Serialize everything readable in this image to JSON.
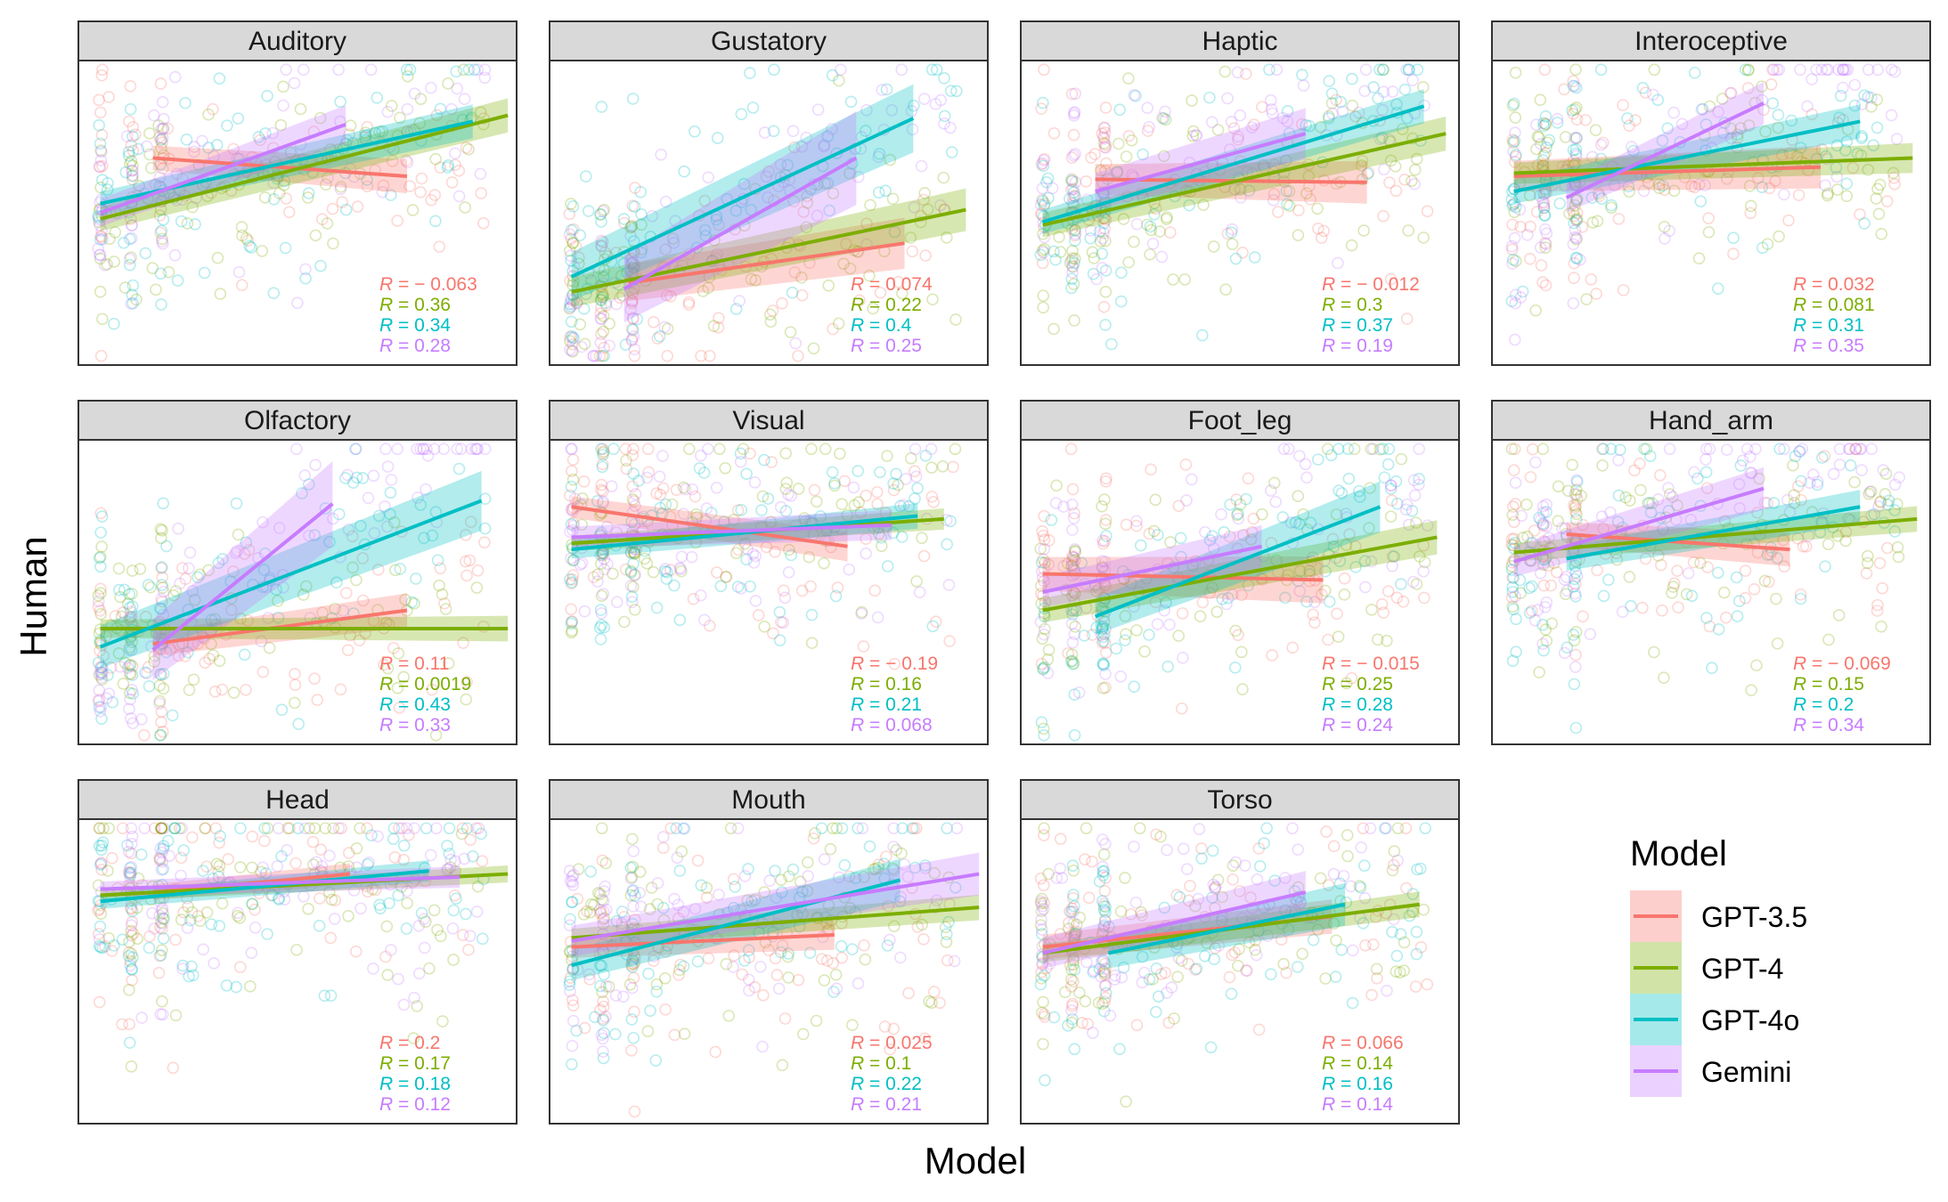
{
  "chart_data": {
    "type": "scatter",
    "xlabel": "Model",
    "ylabel": "Human",
    "legend": {
      "title": "Model",
      "placement": "right",
      "entries": [
        {
          "name": "GPT-3.5",
          "color": "#F8766D"
        },
        {
          "name": "GPT-4",
          "color": "#7CAE00"
        },
        {
          "name": "GPT-4o",
          "color": "#00BFC4"
        },
        {
          "name": "Gemini",
          "color": "#C77CFF"
        }
      ]
    },
    "facets": [
      {
        "name": "Auditory",
        "r": [
          "R = − 0.063",
          "R = 0.36",
          "R = 0.34",
          "R = 0.28"
        ],
        "fits": [
          {
            "x": [
              0.17,
              0.75
            ],
            "y": [
              0.68,
              0.62
            ],
            "band": 0.04
          },
          {
            "x": [
              0.05,
              0.98
            ],
            "y": [
              0.48,
              0.82
            ],
            "band": 0.04
          },
          {
            "x": [
              0.05,
              0.9
            ],
            "y": [
              0.53,
              0.8
            ],
            "band": 0.04
          },
          {
            "x": [
              0.05,
              0.61
            ],
            "y": [
              0.5,
              0.79
            ],
            "band": 0.045
          }
        ]
      },
      {
        "name": "Gustatory",
        "r": [
          "R = 0.074",
          "R = 0.22",
          "R = 0.4",
          "R = 0.25"
        ],
        "fits": [
          {
            "x": [
              0.18,
              0.81
            ],
            "y": [
              0.27,
              0.4
            ],
            "band": 0.06
          },
          {
            "x": [
              0.05,
              0.95
            ],
            "y": [
              0.24,
              0.51
            ],
            "band": 0.05
          },
          {
            "x": [
              0.05,
              0.83
            ],
            "y": [
              0.29,
              0.81
            ],
            "band": 0.08
          },
          {
            "x": [
              0.17,
              0.7
            ],
            "y": [
              0.25,
              0.68
            ],
            "band": 0.11
          }
        ]
      },
      {
        "name": "Haptic",
        "r": [
          "R = − 0.012",
          "R = 0.3",
          "R = 0.37",
          "R = 0.19"
        ],
        "fits": [
          {
            "x": [
              0.17,
              0.79
            ],
            "y": [
              0.61,
              0.6
            ],
            "band": 0.05
          },
          {
            "x": [
              0.05,
              0.97
            ],
            "y": [
              0.46,
              0.76
            ],
            "band": 0.04
          },
          {
            "x": [
              0.05,
              0.92
            ],
            "y": [
              0.47,
              0.85
            ],
            "band": 0.04
          },
          {
            "x": [
              0.17,
              0.65
            ],
            "y": [
              0.57,
              0.76
            ],
            "band": 0.06
          }
        ]
      },
      {
        "name": "Interoceptive",
        "r": [
          "R = 0.032",
          "R = 0.081",
          "R = 0.31",
          "R = 0.35"
        ],
        "fits": [
          {
            "x": [
              0.05,
              0.75
            ],
            "y": [
              0.62,
              0.65
            ],
            "band": 0.05
          },
          {
            "x": [
              0.05,
              0.96
            ],
            "y": [
              0.63,
              0.68
            ],
            "band": 0.035
          },
          {
            "x": [
              0.05,
              0.84
            ],
            "y": [
              0.57,
              0.8
            ],
            "band": 0.04
          },
          {
            "x": [
              0.17,
              0.62
            ],
            "y": [
              0.55,
              0.86
            ],
            "band": 0.05
          }
        ]
      },
      {
        "name": "Olfactory",
        "r": [
          "R = 0.11",
          "R = 0.0019",
          "R = 0.43",
          "R = 0.33"
        ],
        "fits": [
          {
            "x": [
              0.17,
              0.75
            ],
            "y": [
              0.33,
              0.44
            ],
            "band": 0.04
          },
          {
            "x": [
              0.05,
              0.98
            ],
            "y": [
              0.38,
              0.38
            ],
            "band": 0.03
          },
          {
            "x": [
              0.05,
              0.92
            ],
            "y": [
              0.32,
              0.8
            ],
            "band": 0.07
          },
          {
            "x": [
              0.17,
              0.58
            ],
            "y": [
              0.31,
              0.79
            ],
            "band": 0.1
          }
        ]
      },
      {
        "name": "Visual",
        "r": [
          "R = − 0.19",
          "R = 0.16",
          "R = 0.21",
          "R = 0.068"
        ],
        "fits": [
          {
            "x": [
              0.05,
              0.68
            ],
            "y": [
              0.78,
              0.65
            ],
            "band": 0.035
          },
          {
            "x": [
              0.05,
              0.9
            ],
            "y": [
              0.66,
              0.74
            ],
            "band": 0.025
          },
          {
            "x": [
              0.05,
              0.84
            ],
            "y": [
              0.64,
              0.75
            ],
            "band": 0.03
          },
          {
            "x": [
              0.05,
              0.78
            ],
            "y": [
              0.68,
              0.72
            ],
            "band": 0.035
          }
        ]
      },
      {
        "name": "Foot_leg",
        "r": [
          "R = − 0.015",
          "R = 0.25",
          "R = 0.28",
          "R = 0.24"
        ],
        "fits": [
          {
            "x": [
              0.05,
              0.69
            ],
            "y": [
              0.56,
              0.54
            ],
            "band": 0.055
          },
          {
            "x": [
              0.05,
              0.95
            ],
            "y": [
              0.44,
              0.68
            ],
            "band": 0.04
          },
          {
            "x": [
              0.17,
              0.82
            ],
            "y": [
              0.42,
              0.78
            ],
            "band": 0.06
          },
          {
            "x": [
              0.05,
              0.55
            ],
            "y": [
              0.5,
              0.65
            ],
            "band": 0.05
          }
        ]
      },
      {
        "name": "Hand_arm",
        "r": [
          "R = − 0.069",
          "R = 0.15",
          "R = 0.2",
          "R = 0.34"
        ],
        "fits": [
          {
            "x": [
              0.17,
              0.68
            ],
            "y": [
              0.69,
              0.64
            ],
            "band": 0.04
          },
          {
            "x": [
              0.05,
              0.97
            ],
            "y": [
              0.63,
              0.74
            ],
            "band": 0.03
          },
          {
            "x": [
              0.17,
              0.84
            ],
            "y": [
              0.61,
              0.78
            ],
            "band": 0.04
          },
          {
            "x": [
              0.05,
              0.62
            ],
            "y": [
              0.6,
              0.84
            ],
            "band": 0.05
          }
        ]
      },
      {
        "name": "Head",
        "r": [
          "R = 0.2",
          "R = 0.17",
          "R = 0.18",
          "R = 0.12"
        ],
        "fits": [
          {
            "x": [
              0.17,
              0.62
            ],
            "y": [
              0.76,
              0.82
            ],
            "band": 0.025
          },
          {
            "x": [
              0.05,
              0.98
            ],
            "y": [
              0.75,
              0.82
            ],
            "band": 0.02
          },
          {
            "x": [
              0.05,
              0.8
            ],
            "y": [
              0.73,
              0.83
            ],
            "band": 0.025
          },
          {
            "x": [
              0.05,
              0.87
            ],
            "y": [
              0.77,
              0.81
            ],
            "band": 0.025
          }
        ]
      },
      {
        "name": "Mouth",
        "r": [
          "R = 0.025",
          "R = 0.1",
          "R = 0.22",
          "R = 0.21"
        ],
        "fits": [
          {
            "x": [
              0.05,
              0.65
            ],
            "y": [
              0.58,
              0.62
            ],
            "band": 0.035
          },
          {
            "x": [
              0.05,
              0.98
            ],
            "y": [
              0.61,
              0.71
            ],
            "band": 0.03
          },
          {
            "x": [
              0.05,
              0.8
            ],
            "y": [
              0.52,
              0.8
            ],
            "band": 0.05
          },
          {
            "x": [
              0.05,
              0.98
            ],
            "y": [
              0.6,
              0.82
            ],
            "band": 0.05
          }
        ]
      },
      {
        "name": "Torso",
        "r": [
          "R = 0.066",
          "R = 0.14",
          "R = 0.16",
          "R = 0.14"
        ],
        "fits": [
          {
            "x": [
              0.05,
              0.71
            ],
            "y": [
              0.58,
              0.68
            ],
            "band": 0.04
          },
          {
            "x": [
              0.05,
              0.91
            ],
            "y": [
              0.56,
              0.72
            ],
            "band": 0.03
          },
          {
            "x": [
              0.2,
              0.74
            ],
            "y": [
              0.56,
              0.72
            ],
            "band": 0.05
          },
          {
            "x": [
              0.05,
              0.65
            ],
            "y": [
              0.56,
              0.76
            ],
            "band": 0.05
          }
        ]
      }
    ]
  }
}
